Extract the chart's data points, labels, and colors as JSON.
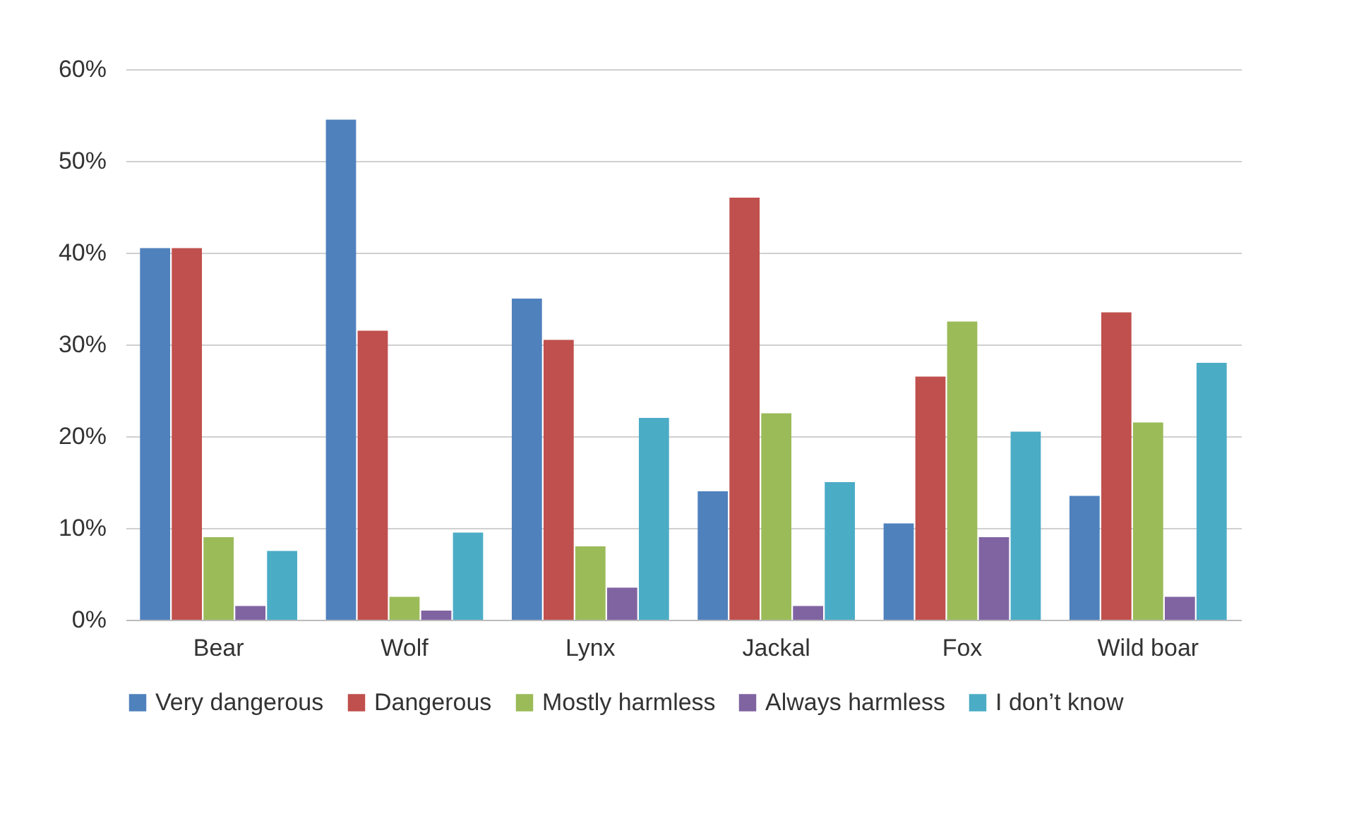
{
  "chart_data": {
    "type": "bar",
    "categories": [
      "Bear",
      "Wolf",
      "Lynx",
      "Jackal",
      "Fox",
      "Wild boar"
    ],
    "series": [
      {
        "name": "Very dangerous",
        "color": "#4f81bd",
        "values": [
          40.5,
          54.5,
          35,
          14,
          10.5,
          13.5
        ]
      },
      {
        "name": "Dangerous",
        "color": "#c0504d",
        "values": [
          40.5,
          31.5,
          30.5,
          46,
          26.5,
          33.5
        ]
      },
      {
        "name": "Mostly harmless",
        "color": "#9bbb59",
        "values": [
          9,
          2.5,
          8,
          22.5,
          32.5,
          21.5
        ]
      },
      {
        "name": "Always harmless",
        "color": "#8064a2",
        "values": [
          1.5,
          1,
          3.5,
          1.5,
          9,
          2.5
        ]
      },
      {
        "name": "I don’t know",
        "color": "#4bacc6",
        "values": [
          7.5,
          9.5,
          22,
          15,
          20.5,
          28
        ]
      }
    ],
    "ylim": [
      0,
      60
    ],
    "yticks": [
      {
        "value": 0,
        "label": "0%"
      },
      {
        "value": 10,
        "label": "10%"
      },
      {
        "value": 20,
        "label": "20%"
      },
      {
        "value": 30,
        "label": "30%"
      },
      {
        "value": 40,
        "label": "40%"
      },
      {
        "value": 50,
        "label": "50%"
      },
      {
        "value": 60,
        "label": "60%"
      }
    ],
    "grid": "y",
    "legend": "bottom"
  }
}
